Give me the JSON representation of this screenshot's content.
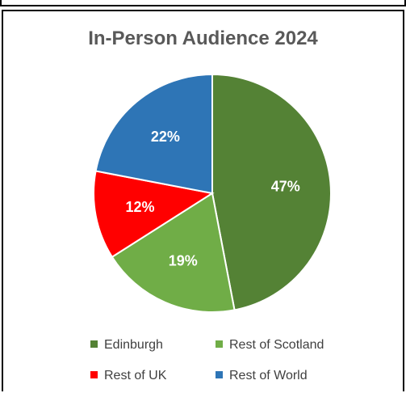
{
  "chart_data": {
    "type": "pie",
    "title": "In-Person Audience 2024",
    "slices": [
      {
        "label": "Edinburgh",
        "value": 47,
        "display": "47%",
        "color": "#548235"
      },
      {
        "label": "Rest of Scotland",
        "value": 19,
        "display": "19%",
        "color": "#70AD47"
      },
      {
        "label": "Rest of UK",
        "value": 12,
        "display": "12%",
        "color": "#FF0000"
      },
      {
        "label": "Rest of World",
        "value": 22,
        "display": "22%",
        "color": "#2E75B6"
      }
    ],
    "start_angle_deg": 0,
    "direction": "clockwise",
    "legend_position": "bottom"
  }
}
